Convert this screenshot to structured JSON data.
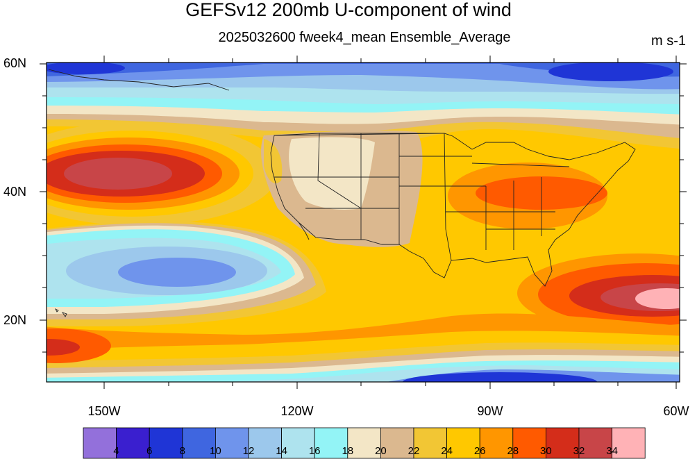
{
  "title": "GEFSv12 200mb U-component of wind",
  "subtitle": "2025032600 fweek4_mean Ensemble_Average",
  "units": "m s-1",
  "lat_labels": [
    "60N",
    "40N",
    "20N"
  ],
  "lon_labels": [
    "150W",
    "120W",
    "90W",
    "60W"
  ],
  "colorbar": {
    "colors": [
      "#9370DB",
      "#3A1FCF",
      "#1F35D6",
      "#3F66E0",
      "#6F94EC",
      "#9CC8EC",
      "#AEE3EE",
      "#93F4F6",
      "#F3E6C6",
      "#DBB88F",
      "#F2C634",
      "#FFC800",
      "#FF9600",
      "#FF5A00",
      "#D42D1A",
      "#C84548",
      "#FFB2B6"
    ],
    "labels": [
      "4",
      "6",
      "8",
      "10",
      "12",
      "14",
      "16",
      "18",
      "20",
      "22",
      "24",
      "26",
      "28",
      "30",
      "32",
      "34"
    ]
  }
}
